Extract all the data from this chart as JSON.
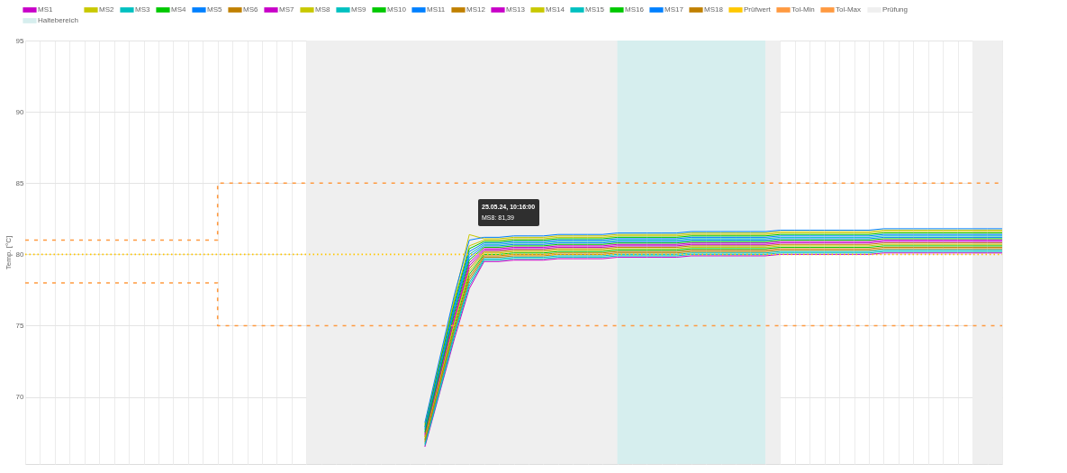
{
  "chart_data": {
    "type": "line",
    "ylabel": "Temp. [°C]",
    "categories": [
      null,
      null,
      null,
      null,
      null,
      null,
      null,
      null,
      null,
      null,
      null,
      null,
      null,
      null,
      null,
      null,
      null,
      null,
      null,
      null,
      null,
      null,
      null,
      null,
      null,
      null,
      null,
      null,
      null,
      null,
      null,
      null,
      null,
      null,
      null,
      null,
      null,
      null,
      null,
      null,
      null,
      null,
      null,
      null,
      null,
      null,
      null,
      null,
      null,
      null,
      null,
      null,
      null,
      null,
      null,
      null,
      null,
      null,
      null,
      null,
      null,
      null,
      null,
      null,
      null,
      null,
      null
    ],
    "ylim": [
      65.3,
      95
    ],
    "yticks": [
      70,
      75,
      80,
      85,
      90,
      95
    ],
    "tick_labels": "y",
    "grid": true,
    "legend": "top",
    "marker": "none",
    "line_style": "solid",
    "series": [
      {
        "name": "MS1",
        "color": "#c800c8",
        "values": [
          null,
          null,
          null,
          null,
          null,
          null,
          null,
          null,
          null,
          null,
          null,
          null,
          null,
          null,
          null,
          null,
          null,
          null,
          null,
          null,
          null,
          null,
          null,
          null,
          null,
          null,
          null,
          66.5,
          70.3,
          74.1,
          77.6,
          79.5,
          79.5,
          79.6,
          79.6,
          79.6,
          79.7,
          79.7,
          79.7,
          79.7,
          79.8,
          79.8,
          79.8,
          79.8,
          79.8,
          79.9,
          79.9,
          79.9,
          79.9,
          79.9,
          79.9,
          80.0,
          80.0,
          80.0,
          80.0,
          80.0,
          80.0,
          80.0,
          80.1,
          80.1,
          80.1,
          80.1,
          80.1,
          80.1,
          80.1,
          80.1,
          80.1
        ]
      },
      {
        "name": "MS2",
        "color": "#c8c800",
        "values": [
          null,
          null,
          null,
          null,
          null,
          null,
          null,
          null,
          null,
          null,
          null,
          null,
          null,
          null,
          null,
          null,
          null,
          null,
          null,
          null,
          null,
          null,
          null,
          null,
          null,
          null,
          null,
          68.0,
          72.4,
          76.8,
          80.6,
          81.0,
          81.0,
          81.1,
          81.1,
          81.1,
          81.2,
          81.2,
          81.2,
          81.2,
          81.3,
          81.3,
          81.3,
          81.3,
          81.3,
          81.4,
          81.4,
          81.4,
          81.4,
          81.4,
          81.4,
          81.5,
          81.5,
          81.5,
          81.5,
          81.5,
          81.5,
          81.5,
          81.6,
          81.6,
          81.6,
          81.6,
          81.6,
          81.6,
          81.6,
          81.6,
          81.6
        ]
      },
      {
        "name": "MS3",
        "color": "#00c0c0",
        "values": [
          null,
          null,
          null,
          null,
          null,
          null,
          null,
          null,
          null,
          null,
          null,
          null,
          null,
          null,
          null,
          null,
          null,
          null,
          null,
          null,
          null,
          null,
          null,
          null,
          null,
          null,
          null,
          67.7,
          72.0,
          76.3,
          80.0,
          80.7,
          80.7,
          80.8,
          80.8,
          80.8,
          80.9,
          80.9,
          80.9,
          80.9,
          81.0,
          81.0,
          81.0,
          81.0,
          81.0,
          81.1,
          81.1,
          81.1,
          81.1,
          81.1,
          81.1,
          81.2,
          81.2,
          81.2,
          81.2,
          81.2,
          81.2,
          81.2,
          81.3,
          81.3,
          81.3,
          81.3,
          81.3,
          81.3,
          81.3,
          81.3,
          81.3
        ]
      },
      {
        "name": "MS4",
        "color": "#00c800",
        "values": [
          null,
          null,
          null,
          null,
          null,
          null,
          null,
          null,
          null,
          null,
          null,
          null,
          null,
          null,
          null,
          null,
          null,
          null,
          null,
          null,
          null,
          null,
          null,
          null,
          null,
          null,
          null,
          67.0,
          71.0,
          75.0,
          78.6,
          80.0,
          80.0,
          80.1,
          80.1,
          80.1,
          80.2,
          80.2,
          80.2,
          80.2,
          80.3,
          80.3,
          80.3,
          80.3,
          80.3,
          80.4,
          80.4,
          80.4,
          80.4,
          80.4,
          80.4,
          80.5,
          80.5,
          80.5,
          80.5,
          80.5,
          80.5,
          80.5,
          80.6,
          80.6,
          80.6,
          80.6,
          80.6,
          80.6,
          80.6,
          80.6,
          80.6
        ]
      },
      {
        "name": "MS5",
        "color": "#0080ff",
        "values": [
          null,
          null,
          null,
          null,
          null,
          null,
          null,
          null,
          null,
          null,
          null,
          null,
          null,
          null,
          null,
          null,
          null,
          null,
          null,
          null,
          null,
          null,
          null,
          null,
          null,
          null,
          null,
          67.6,
          71.8,
          76.1,
          79.8,
          80.6,
          80.6,
          80.7,
          80.7,
          80.7,
          80.8,
          80.8,
          80.8,
          80.8,
          80.9,
          80.9,
          80.9,
          80.9,
          80.9,
          81.0,
          81.0,
          81.0,
          81.0,
          81.0,
          81.0,
          81.1,
          81.1,
          81.1,
          81.1,
          81.1,
          81.1,
          81.1,
          81.2,
          81.2,
          81.2,
          81.2,
          81.2,
          81.2,
          81.2,
          81.2,
          81.2
        ]
      },
      {
        "name": "MS6",
        "color": "#c08000",
        "values": [
          null,
          null,
          null,
          null,
          null,
          null,
          null,
          null,
          null,
          null,
          null,
          null,
          null,
          null,
          null,
          null,
          null,
          null,
          null,
          null,
          null,
          null,
          null,
          null,
          null,
          null,
          null,
          66.8,
          70.7,
          74.6,
          78.2,
          79.8,
          79.8,
          79.9,
          79.9,
          79.9,
          80.0,
          80.0,
          80.0,
          80.0,
          80.1,
          80.1,
          80.1,
          80.1,
          80.1,
          80.2,
          80.2,
          80.2,
          80.2,
          80.2,
          80.2,
          80.3,
          80.3,
          80.3,
          80.3,
          80.3,
          80.3,
          80.3,
          80.4,
          80.4,
          80.4,
          80.4,
          80.4,
          80.4,
          80.4,
          80.4,
          80.4
        ]
      },
      {
        "name": "MS7",
        "color": "#c800c8",
        "values": [
          null,
          null,
          null,
          null,
          null,
          null,
          null,
          null,
          null,
          null,
          null,
          null,
          null,
          null,
          null,
          null,
          null,
          null,
          null,
          null,
          null,
          null,
          null,
          null,
          null,
          null,
          null,
          67.4,
          71.6,
          75.7,
          79.4,
          80.4,
          80.4,
          80.5,
          80.5,
          80.5,
          80.6,
          80.6,
          80.6,
          80.6,
          80.7,
          80.7,
          80.7,
          80.7,
          80.7,
          80.8,
          80.8,
          80.8,
          80.8,
          80.8,
          80.8,
          80.9,
          80.9,
          80.9,
          80.9,
          80.9,
          80.9,
          80.9,
          81.0,
          81.0,
          81.0,
          81.0,
          81.0,
          81.0,
          81.0,
          81.0,
          81.0
        ]
      },
      {
        "name": "MS8",
        "color": "#c8c800",
        "values": [
          null,
          null,
          null,
          null,
          null,
          null,
          null,
          null,
          null,
          null,
          null,
          null,
          null,
          null,
          null,
          null,
          null,
          null,
          null,
          null,
          null,
          null,
          null,
          null,
          null,
          null,
          null,
          68.1,
          72.5,
          77.0,
          81.39,
          81.1,
          81.1,
          81.2,
          81.2,
          81.2,
          81.3,
          81.3,
          81.3,
          81.3,
          81.4,
          81.4,
          81.4,
          81.4,
          81.4,
          81.5,
          81.5,
          81.5,
          81.5,
          81.5,
          81.5,
          81.6,
          81.6,
          81.6,
          81.6,
          81.6,
          81.6,
          81.6,
          81.7,
          81.7,
          81.7,
          81.7,
          81.7,
          81.7,
          81.7,
          81.7,
          81.7
        ]
      },
      {
        "name": "MS9",
        "color": "#00c0c0",
        "values": [
          null,
          null,
          null,
          null,
          null,
          null,
          null,
          null,
          null,
          null,
          null,
          null,
          null,
          null,
          null,
          null,
          null,
          null,
          null,
          null,
          null,
          null,
          null,
          null,
          null,
          null,
          null,
          66.7,
          70.6,
          74.5,
          78.0,
          79.7,
          79.7,
          79.8,
          79.8,
          79.8,
          79.9,
          79.9,
          79.9,
          79.9,
          80.0,
          80.0,
          80.0,
          80.0,
          80.0,
          80.1,
          80.1,
          80.1,
          80.1,
          80.1,
          80.1,
          80.2,
          80.2,
          80.2,
          80.2,
          80.2,
          80.2,
          80.2,
          80.3,
          80.3,
          80.3,
          80.3,
          80.3,
          80.3,
          80.3,
          80.3,
          80.3
        ]
      },
      {
        "name": "MS10",
        "color": "#00c800",
        "values": [
          null,
          null,
          null,
          null,
          null,
          null,
          null,
          null,
          null,
          null,
          null,
          null,
          null,
          null,
          null,
          null,
          null,
          null,
          null,
          null,
          null,
          null,
          null,
          null,
          null,
          null,
          null,
          67.9,
          72.3,
          76.6,
          80.4,
          80.9,
          80.9,
          81.0,
          81.0,
          81.0,
          81.1,
          81.1,
          81.1,
          81.1,
          81.2,
          81.2,
          81.2,
          81.2,
          81.2,
          81.3,
          81.3,
          81.3,
          81.3,
          81.3,
          81.3,
          81.4,
          81.4,
          81.4,
          81.4,
          81.4,
          81.4,
          81.4,
          81.5,
          81.5,
          81.5,
          81.5,
          81.5,
          81.5,
          81.5,
          81.5,
          81.5
        ]
      },
      {
        "name": "MS11",
        "color": "#0080ff",
        "values": [
          null,
          null,
          null,
          null,
          null,
          null,
          null,
          null,
          null,
          null,
          null,
          null,
          null,
          null,
          null,
          null,
          null,
          null,
          null,
          null,
          null,
          null,
          null,
          null,
          null,
          null,
          null,
          67.8,
          72.1,
          76.4,
          80.2,
          80.8,
          80.8,
          80.9,
          80.9,
          80.9,
          81.0,
          81.0,
          81.0,
          81.0,
          81.1,
          81.1,
          81.1,
          81.1,
          81.1,
          81.2,
          81.2,
          81.2,
          81.2,
          81.2,
          81.2,
          81.3,
          81.3,
          81.3,
          81.3,
          81.3,
          81.3,
          81.3,
          81.4,
          81.4,
          81.4,
          81.4,
          81.4,
          81.4,
          81.4,
          81.4,
          81.4
        ]
      },
      {
        "name": "MS12",
        "color": "#c08000",
        "values": [
          null,
          null,
          null,
          null,
          null,
          null,
          null,
          null,
          null,
          null,
          null,
          null,
          null,
          null,
          null,
          null,
          null,
          null,
          null,
          null,
          null,
          null,
          null,
          null,
          null,
          null,
          null,
          67.2,
          71.3,
          75.4,
          79.0,
          80.2,
          80.2,
          80.3,
          80.3,
          80.3,
          80.4,
          80.4,
          80.4,
          80.4,
          80.5,
          80.5,
          80.5,
          80.5,
          80.5,
          80.6,
          80.6,
          80.6,
          80.6,
          80.6,
          80.6,
          80.7,
          80.7,
          80.7,
          80.7,
          80.7,
          80.7,
          80.7,
          80.8,
          80.8,
          80.8,
          80.8,
          80.8,
          80.8,
          80.8,
          80.8,
          80.8
        ]
      },
      {
        "name": "MS13",
        "color": "#c800c8",
        "values": [
          null,
          null,
          null,
          null,
          null,
          null,
          null,
          null,
          null,
          null,
          null,
          null,
          null,
          null,
          null,
          null,
          null,
          null,
          null,
          null,
          null,
          null,
          null,
          null,
          null,
          null,
          null,
          67.3,
          71.4,
          75.5,
          79.2,
          80.3,
          80.3,
          80.4,
          80.4,
          80.4,
          80.5,
          80.5,
          80.5,
          80.5,
          80.6,
          80.6,
          80.6,
          80.6,
          80.6,
          80.7,
          80.7,
          80.7,
          80.7,
          80.7,
          80.7,
          80.8,
          80.8,
          80.8,
          80.8,
          80.8,
          80.8,
          80.8,
          80.9,
          80.9,
          80.9,
          80.9,
          80.9,
          80.9,
          80.9,
          80.9,
          80.9
        ]
      },
      {
        "name": "MS14",
        "color": "#c8c800",
        "values": [
          null,
          null,
          null,
          null,
          null,
          null,
          null,
          null,
          null,
          null,
          null,
          null,
          null,
          null,
          null,
          null,
          null,
          null,
          null,
          null,
          null,
          null,
          null,
          null,
          null,
          null,
          null,
          67.1,
          71.1,
          75.2,
          78.8,
          80.1,
          80.1,
          80.2,
          80.2,
          80.2,
          80.3,
          80.3,
          80.3,
          80.3,
          80.4,
          80.4,
          80.4,
          80.4,
          80.4,
          80.5,
          80.5,
          80.5,
          80.5,
          80.5,
          80.5,
          80.6,
          80.6,
          80.6,
          80.6,
          80.6,
          80.6,
          80.6,
          80.7,
          80.7,
          80.7,
          80.7,
          80.7,
          80.7,
          80.7,
          80.7,
          80.7
        ]
      },
      {
        "name": "MS15",
        "color": "#00c0c0",
        "values": [
          null,
          null,
          null,
          null,
          null,
          null,
          null,
          null,
          null,
          null,
          null,
          null,
          null,
          null,
          null,
          null,
          null,
          null,
          null,
          null,
          null,
          null,
          null,
          null,
          null,
          null,
          null,
          66.6,
          70.4,
          74.3,
          77.8,
          79.6,
          79.6,
          79.7,
          79.7,
          79.7,
          79.8,
          79.8,
          79.8,
          79.8,
          79.9,
          79.9,
          79.9,
          79.9,
          79.9,
          80.0,
          80.0,
          80.0,
          80.0,
          80.0,
          80.0,
          80.1,
          80.1,
          80.1,
          80.1,
          80.1,
          80.1,
          80.1,
          80.2,
          80.2,
          80.2,
          80.2,
          80.2,
          80.2,
          80.2,
          80.2,
          80.2
        ]
      },
      {
        "name": "MS16",
        "color": "#00c800",
        "values": [
          null,
          null,
          null,
          null,
          null,
          null,
          null,
          null,
          null,
          null,
          null,
          null,
          null,
          null,
          null,
          null,
          null,
          null,
          null,
          null,
          null,
          null,
          null,
          null,
          null,
          null,
          null,
          67.5,
          71.7,
          75.9,
          79.6,
          80.5,
          80.5,
          80.6,
          80.6,
          80.6,
          80.7,
          80.7,
          80.7,
          80.7,
          80.8,
          80.8,
          80.8,
          80.8,
          80.8,
          80.9,
          80.9,
          80.9,
          80.9,
          80.9,
          80.9,
          81.0,
          81.0,
          81.0,
          81.0,
          81.0,
          81.0,
          81.0,
          81.1,
          81.1,
          81.1,
          81.1,
          81.1,
          81.1,
          81.1,
          81.1,
          81.1
        ]
      },
      {
        "name": "MS17",
        "color": "#0080ff",
        "values": [
          null,
          null,
          null,
          null,
          null,
          null,
          null,
          null,
          null,
          null,
          null,
          null,
          null,
          null,
          null,
          null,
          null,
          null,
          null,
          null,
          null,
          null,
          null,
          null,
          null,
          null,
          null,
          68.2,
          72.7,
          77.2,
          81.0,
          81.2,
          81.2,
          81.3,
          81.3,
          81.3,
          81.4,
          81.4,
          81.4,
          81.4,
          81.5,
          81.5,
          81.5,
          81.5,
          81.5,
          81.6,
          81.6,
          81.6,
          81.6,
          81.6,
          81.6,
          81.7,
          81.7,
          81.7,
          81.7,
          81.7,
          81.7,
          81.7,
          81.8,
          81.8,
          81.8,
          81.8,
          81.8,
          81.8,
          81.8,
          81.8,
          81.8
        ]
      },
      {
        "name": "MS18",
        "color": "#c08000",
        "values": [
          null,
          null,
          null,
          null,
          null,
          null,
          null,
          null,
          null,
          null,
          null,
          null,
          null,
          null,
          null,
          null,
          null,
          null,
          null,
          null,
          null,
          null,
          null,
          null,
          null,
          null,
          null,
          66.9,
          70.9,
          74.8,
          78.4,
          79.9,
          79.9,
          80.0,
          80.0,
          80.0,
          80.1,
          80.1,
          80.1,
          80.1,
          80.2,
          80.2,
          80.2,
          80.2,
          80.2,
          80.3,
          80.3,
          80.3,
          80.3,
          80.3,
          80.3,
          80.4,
          80.4,
          80.4,
          80.4,
          80.4,
          80.4,
          80.4,
          80.5,
          80.5,
          80.5,
          80.5,
          80.5,
          80.5,
          80.5,
          80.5,
          80.5
        ]
      },
      {
        "name": "Prüfwert",
        "color": "#ffc800",
        "line_style": "dotted",
        "values": [
          80,
          80,
          80,
          80,
          80,
          80,
          80,
          80,
          80,
          80,
          80,
          80,
          80,
          80,
          80,
          80,
          80,
          80,
          80,
          80,
          80,
          80,
          80,
          80,
          80,
          80,
          80,
          80,
          80,
          80,
          80,
          80,
          80,
          80,
          80,
          80,
          80,
          80,
          80,
          80,
          80,
          80,
          80,
          80,
          80,
          80,
          80,
          80,
          80,
          80,
          80,
          80,
          80,
          80,
          80,
          80,
          80,
          80,
          80,
          80,
          80,
          80,
          80,
          80,
          80,
          80,
          80
        ]
      },
      {
        "name": "Tol-Min",
        "type": "step",
        "color": "#ff9a40",
        "line_style": "dashed",
        "values": [
          78,
          78,
          78,
          78,
          78,
          78,
          78,
          78,
          78,
          78,
          78,
          78,
          78,
          75,
          75,
          75,
          75,
          75,
          75,
          75,
          75,
          75,
          75,
          75,
          75,
          75,
          75,
          75,
          75,
          75,
          75,
          75,
          75,
          75,
          75,
          75,
          75,
          75,
          75,
          75,
          75,
          75,
          75,
          75,
          75,
          75,
          75,
          75,
          75,
          75,
          75,
          75,
          75,
          75,
          75,
          75,
          75,
          75,
          75,
          75,
          75,
          75,
          75,
          75,
          75,
          75,
          75
        ]
      },
      {
        "name": "Tol-Max",
        "type": "step",
        "color": "#ff9a40",
        "line_style": "dashed",
        "values": [
          81,
          81,
          81,
          81,
          81,
          81,
          81,
          81,
          81,
          81,
          81,
          81,
          81,
          85,
          85,
          85,
          85,
          85,
          85,
          85,
          85,
          85,
          85,
          85,
          85,
          85,
          85,
          85,
          85,
          85,
          85,
          85,
          85,
          85,
          85,
          85,
          85,
          85,
          85,
          85,
          85,
          85,
          85,
          85,
          85,
          85,
          85,
          85,
          85,
          85,
          85,
          85,
          85,
          85,
          85,
          85,
          85,
          85,
          85,
          85,
          85,
          85,
          85,
          85,
          85,
          85,
          85
        ]
      },
      {
        "name": "Prüfung",
        "type": "area",
        "color": "#efefef",
        "values": [
          null,
          null,
          null,
          null,
          null,
          null,
          null,
          null,
          null,
          null,
          null,
          null,
          null,
          null,
          null,
          null,
          null,
          null,
          null,
          95,
          95,
          95,
          95,
          95,
          95,
          95,
          95,
          95,
          95,
          95,
          95,
          95,
          95,
          95,
          95,
          95,
          95,
          95,
          95,
          95,
          95,
          95,
          95,
          95,
          95,
          95,
          95,
          95,
          95,
          95,
          95,
          95,
          null,
          null,
          null,
          null,
          null,
          null,
          null,
          null,
          null,
          null,
          null,
          null,
          null,
          null,
          null
        ]
      },
      {
        "type": "area",
        "color": "#efefef",
        "values": [
          null,
          null,
          null,
          null,
          null,
          null,
          null,
          null,
          null,
          null,
          null,
          null,
          null,
          null,
          null,
          null,
          null,
          null,
          null,
          null,
          null,
          null,
          null,
          null,
          null,
          null,
          null,
          null,
          null,
          null,
          null,
          null,
          null,
          null,
          null,
          null,
          null,
          null,
          null,
          null,
          null,
          null,
          null,
          null,
          null,
          null,
          null,
          null,
          null,
          null,
          null,
          null,
          null,
          null,
          null,
          null,
          null,
          null,
          null,
          null,
          null,
          null,
          null,
          null,
          95,
          95,
          95
        ]
      },
      {
        "name": "Haltebereich",
        "type": "area",
        "color": "#d6eeee",
        "values": [
          null,
          null,
          null,
          null,
          null,
          null,
          null,
          null,
          null,
          null,
          null,
          null,
          null,
          null,
          null,
          null,
          null,
          null,
          null,
          null,
          null,
          null,
          null,
          null,
          null,
          null,
          null,
          null,
          null,
          null,
          null,
          null,
          null,
          null,
          null,
          null,
          null,
          null,
          null,
          null,
          95,
          95,
          95,
          95,
          95,
          95,
          95,
          95,
          95,
          95,
          95,
          null,
          null,
          null,
          null,
          null,
          null,
          null,
          null,
          null,
          null,
          null,
          null,
          null,
          null,
          null,
          null
        ]
      }
    ],
    "annotations": [
      "25.05.24, 10:16:00",
      "MS8: 81,39"
    ]
  }
}
